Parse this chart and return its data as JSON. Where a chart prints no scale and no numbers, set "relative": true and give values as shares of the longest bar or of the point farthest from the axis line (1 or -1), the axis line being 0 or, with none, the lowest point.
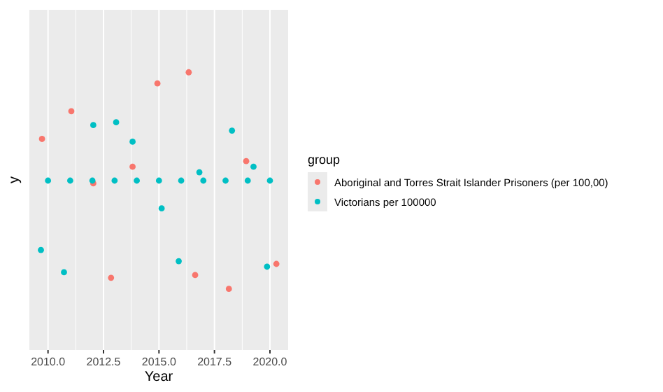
{
  "chart_data": {
    "type": "scatter",
    "xlabel": "Year",
    "ylabel": "y",
    "legend_title": "group",
    "relative": true,
    "xlim": [
      2009.16,
      2020.82
    ],
    "xticks": [
      {
        "value": 2010,
        "label": "2010.0"
      },
      2012.5,
      {
        "value": 2015,
        "label": "2015.0"
      },
      2017.5,
      {
        "value": 2020,
        "label": "2020.0"
      }
    ],
    "grid": "x",
    "legend": "right",
    "marker": "circle",
    "series": [
      {
        "name": "Aboriginal and Torres Strait Islander Prisoners (per 100,00)",
        "color": "#f8766d",
        "x": [
          2009.73,
          2011.05,
          2012.04,
          2012.84,
          2013.81,
          2014.93,
          2016.34,
          2016.63,
          2018.15,
          2018.93,
          2020.29
        ],
        "values": [
          0.76,
          0.86,
          0.6,
          0.26,
          0.66,
          0.96,
          1.0,
          0.27,
          0.22,
          0.68,
          0.31
        ]
      },
      {
        "name": "Victorians per 100000",
        "color": "#00bfc4",
        "x": [
          2009.68,
          2010,
          2010.72,
          2011,
          2012.04,
          2012,
          2013.07,
          2013,
          2013.81,
          2014,
          2015,
          2015.12,
          2015.89,
          2016,
          2016.82,
          2017,
          2018,
          2018.29,
          2019,
          2019.26,
          2019.87,
          2020
        ],
        "values": [
          0.36,
          0.61,
          0.28,
          0.61,
          0.81,
          0.61,
          0.82,
          0.61,
          0.75,
          0.61,
          0.61,
          0.51,
          0.32,
          0.61,
          0.64,
          0.61,
          0.61,
          0.79,
          0.61,
          0.66,
          0.3,
          0.61
        ]
      }
    ]
  }
}
